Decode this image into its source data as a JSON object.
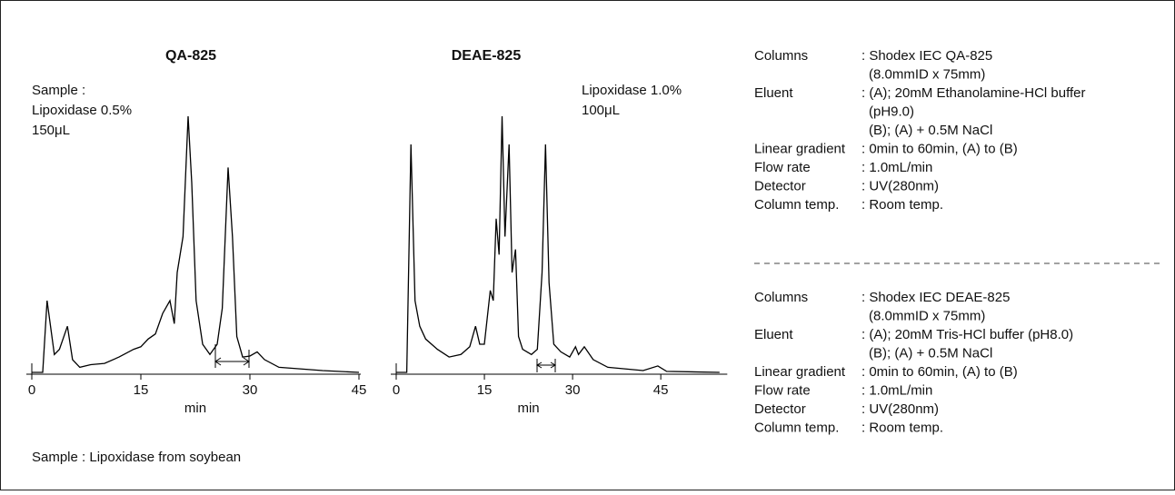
{
  "chart_data": [
    {
      "type": "line",
      "title": "QA-825",
      "xlabel": "min",
      "annotation": [
        "Sample :",
        "Lipoxidase 0.5%",
        "150μL"
      ],
      "x": [
        0,
        1.5,
        2.1,
        3.1,
        3.8,
        4.9,
        5.6,
        6.6,
        8.1,
        10,
        12,
        14,
        15,
        16,
        17,
        18,
        19,
        19.6,
        20,
        20.8,
        21.5,
        22,
        22.6,
        23.5,
        24.5,
        25.5,
        26.2,
        27,
        27.6,
        28.2,
        29,
        30,
        31,
        32,
        34,
        40,
        45
      ],
      "series": [
        {
          "color": "#000000",
          "values": [
            0,
            0,
            28,
            7,
            9,
            18,
            5,
            2,
            3,
            3.5,
            6,
            9,
            10,
            13,
            15,
            23,
            28,
            19,
            39,
            53,
            100,
            74,
            28,
            11,
            7,
            11,
            25,
            80,
            53,
            14,
            6,
            6.4,
            8,
            5,
            2,
            0.7,
            0
          ]
        }
      ],
      "xlim": [
        0,
        45
      ],
      "xticks": [
        0,
        15,
        30,
        45
      ],
      "ylim": [
        0,
        100
      ]
    },
    {
      "type": "line",
      "title": "DEAE-825",
      "xlabel": "min",
      "annotation": [
        "Lipoxidase 1.0%",
        "100μL"
      ],
      "x": [
        0,
        1.8,
        2.5,
        3.2,
        4,
        5,
        7,
        9,
        11,
        12.5,
        13.5,
        14.2,
        15,
        16,
        16.5,
        17,
        17.5,
        18,
        18.5,
        19.2,
        19.7,
        20.3,
        20.8,
        21.5,
        23,
        24,
        24.8,
        25.4,
        26,
        26.8,
        28,
        29.5,
        30.5,
        31,
        32,
        33.5,
        36,
        42,
        44.5,
        46,
        55
      ],
      "series": [
        {
          "color": "#000000",
          "values": [
            0,
            0,
            89,
            28,
            18,
            13,
            9,
            6,
            7,
            10,
            18,
            11,
            11,
            32,
            28,
            60,
            46,
            100,
            53,
            89,
            39,
            48,
            14,
            9,
            7,
            9,
            39,
            89,
            35,
            11,
            8,
            6,
            10,
            7,
            10,
            5,
            2,
            0.7,
            2.5,
            0.4,
            0
          ]
        }
      ],
      "xlim": [
        0,
        56
      ],
      "xticks": [
        0,
        15,
        30,
        45
      ],
      "ylim": [
        0,
        100
      ]
    }
  ],
  "footnote": "Sample : Lipoxidase from soybean",
  "conditions": [
    [
      {
        "label": "Columns",
        "value": [
          ": Shodex IEC QA-825",
          "(8.0mmID x 75mm)"
        ]
      },
      {
        "label": "Eluent",
        "value": [
          ": (A); 20mM Ethanolamine-HCl buffer",
          "(pH9.0)",
          "(B); (A) + 0.5M NaCl"
        ]
      },
      {
        "label": "Linear gradient",
        "value": [
          ": 0min to 60min, (A) to (B)"
        ]
      },
      {
        "label": "Flow rate",
        "value": [
          ": 1.0mL/min"
        ]
      },
      {
        "label": "Detector",
        "value": [
          ": UV(280nm)"
        ]
      },
      {
        "label": "Column temp.",
        "value": [
          ": Room temp."
        ]
      }
    ],
    [
      {
        "label": "Columns",
        "value": [
          ": Shodex IEC DEAE-825",
          "(8.0mmID x 75mm)"
        ]
      },
      {
        "label": "Eluent",
        "value": [
          ": (A); 20mM Tris-HCl buffer (pH8.0)",
          "(B); (A) + 0.5M NaCl"
        ]
      },
      {
        "label": "Linear gradient",
        "value": [
          ": 0min to 60min, (A) to (B)"
        ]
      },
      {
        "label": "Flow rate",
        "value": [
          ": 1.0mL/min"
        ]
      },
      {
        "label": "Detector",
        "value": [
          ": UV(280nm)"
        ]
      },
      {
        "label": "Column temp.",
        "value": [
          ": Room temp."
        ]
      }
    ]
  ]
}
